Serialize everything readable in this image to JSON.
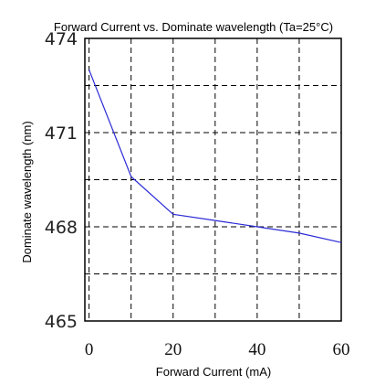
{
  "chart_data": {
    "type": "line",
    "title": "Forward Current vs. Dominate wavelength (Ta=25°C)",
    "xlabel": "Forward  Current  (mA)",
    "ylabel": "Dominate wavelength  (nm)",
    "xlim": [
      -1,
      60
    ],
    "ylim": [
      465,
      474
    ],
    "x_ticks": [
      0,
      20,
      40,
      60
    ],
    "x_tick_labels": [
      "0",
      "20",
      "40",
      "60"
    ],
    "y_ticks": [
      465,
      468,
      471,
      474
    ],
    "y_tick_labels": [
      "465",
      "468",
      "471",
      "474"
    ],
    "x_gridlines": [
      0,
      10,
      20,
      30,
      40,
      50
    ],
    "y_gridlines": [
      466.5,
      468,
      469.5,
      471,
      472.5
    ],
    "grid": true,
    "grid_style": "dashed",
    "line_color": "#2b2bd6",
    "series": [
      {
        "x": [
          0,
          10,
          20,
          30,
          40,
          50,
          60
        ],
        "y": [
          473.0,
          469.6,
          468.4,
          468.2,
          468.0,
          467.8,
          467.5
        ]
      }
    ]
  }
}
